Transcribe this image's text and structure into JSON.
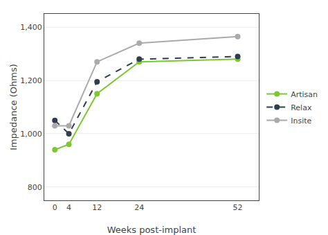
{
  "chart_data": {
    "type": "line",
    "x": [
      0,
      4,
      12,
      24,
      52
    ],
    "series": [
      {
        "name": "Artisan",
        "color": "#7dc832",
        "values": [
          940,
          960,
          1150,
          1270,
          1280
        ],
        "marker": "circle",
        "line_style": "solid"
      },
      {
        "name": "Relax",
        "color": "#2e3d4f",
        "values": [
          1050,
          1000,
          1195,
          1280,
          1290
        ],
        "marker": "circle",
        "line_style": "dashed"
      },
      {
        "name": "Insite",
        "color": "#aaaaaa",
        "values": [
          1030,
          1030,
          1270,
          1340,
          1365
        ],
        "marker": "circle",
        "line_style": "solid"
      }
    ],
    "xlabel": "Weeks post-implant",
    "ylabel": "Impedance (Ohms)",
    "xlim": [
      -3,
      58
    ],
    "xticks": [
      0,
      4,
      12,
      24,
      52
    ],
    "ylim": [
      750,
      1450
    ],
    "yticks": [
      800,
      {
        "value": 1000,
        "label": "1,000"
      },
      {
        "value": 1200,
        "label": "1,200"
      },
      {
        "value": 1400,
        "label": "1,400"
      }
    ],
    "grid": "y",
    "legend": "right"
  }
}
